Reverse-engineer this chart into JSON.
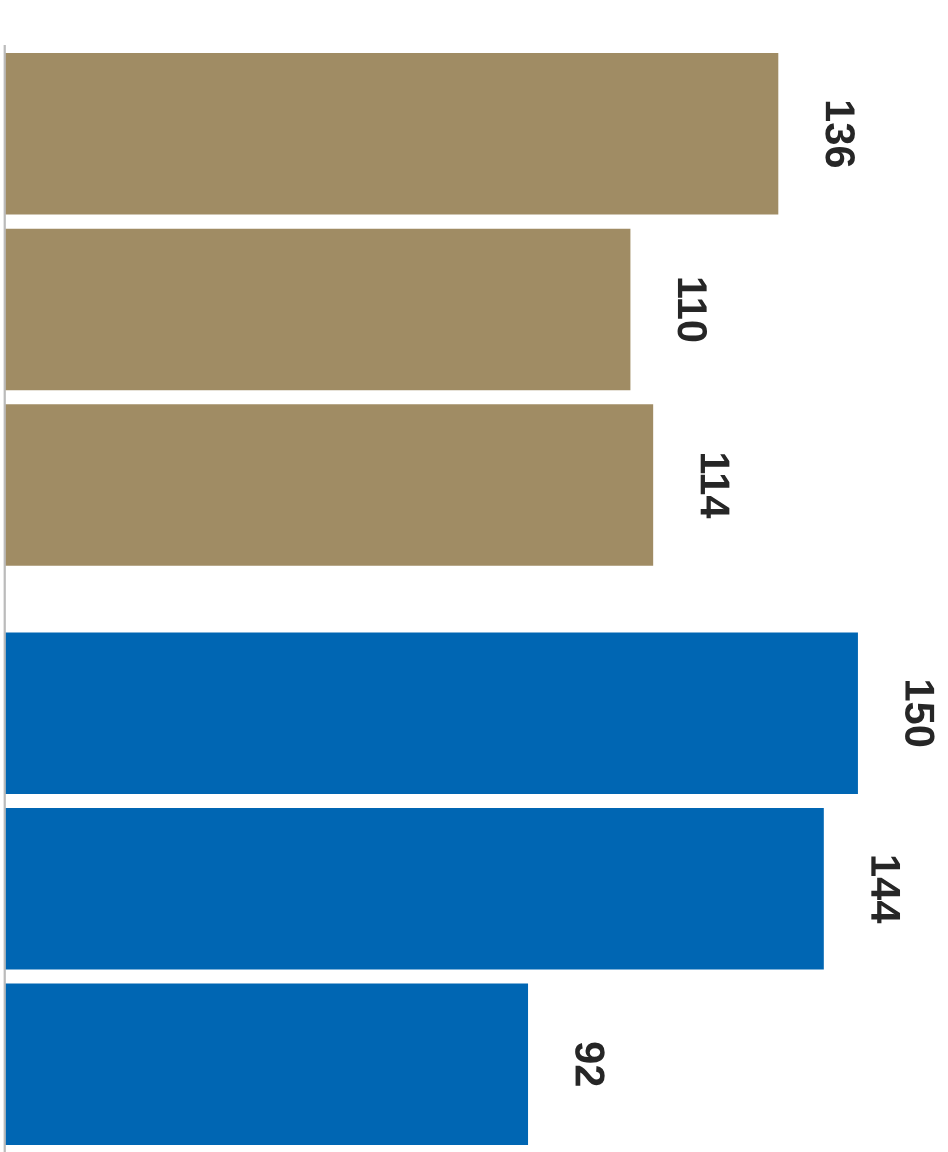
{
  "chart_data": {
    "type": "bar",
    "orientation": "horizontal",
    "categories": [
      null,
      null,
      null,
      null,
      null,
      null
    ],
    "values": [
      136,
      110,
      114,
      150,
      144,
      92
    ],
    "colors": [
      "#a08c64",
      "#a08c64",
      "#a08c64",
      "#0066b3",
      "#0066b3",
      "#0066b3"
    ],
    "data_labels": true,
    "grid": false,
    "legend": false
  }
}
